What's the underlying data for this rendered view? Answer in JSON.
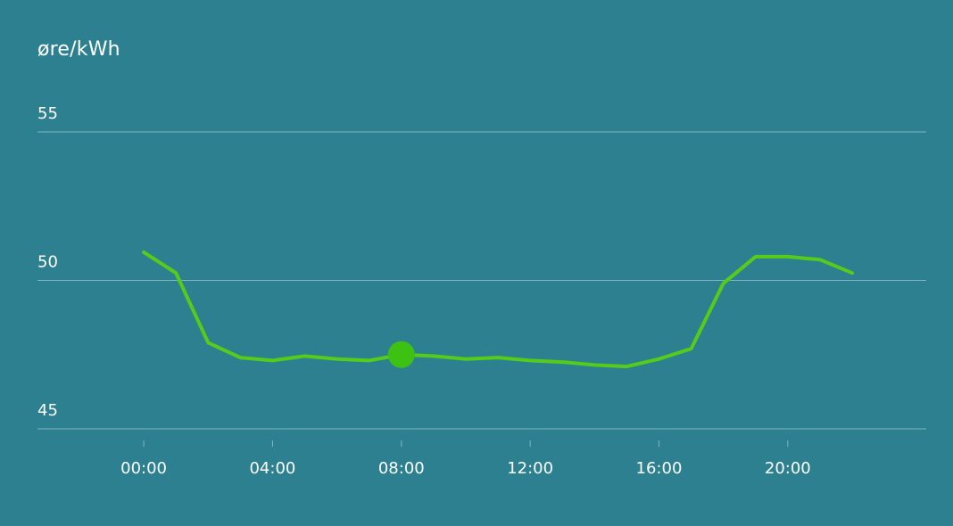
{
  "chart_data": {
    "type": "line",
    "ylabel": "øre/kWh",
    "ylim": [
      45,
      55
    ],
    "y_ticks": [
      "55",
      "50",
      "45"
    ],
    "x_tick_labels": [
      "00:00",
      "04:00",
      "08:00",
      "12:00",
      "16:00",
      "20:00"
    ],
    "x_tick_hours": [
      0,
      4,
      8,
      12,
      16,
      20
    ],
    "xlim": [
      -3.3,
      24.3
    ],
    "grid": true,
    "series": [
      {
        "color": "#55cc1a",
        "x": [
          0,
          1,
          2,
          3,
          4,
          5,
          6,
          7,
          8,
          9,
          10,
          11,
          12,
          13,
          14,
          15,
          16,
          17,
          18,
          19,
          20,
          21,
          22
        ],
        "values": [
          50.95,
          50.25,
          47.9,
          47.4,
          47.3,
          47.45,
          47.35,
          47.3,
          47.5,
          47.45,
          47.35,
          47.4,
          47.3,
          47.25,
          47.15,
          47.1,
          47.35,
          47.7,
          49.9,
          50.8,
          50.8,
          50.7,
          50.25
        ]
      }
    ],
    "highlight": {
      "x": 8,
      "value": 47.5,
      "color": "#3dc213"
    }
  },
  "colors": {
    "background": "#2c8090",
    "grid": "#7fb6c2",
    "text": "#ffffff"
  }
}
